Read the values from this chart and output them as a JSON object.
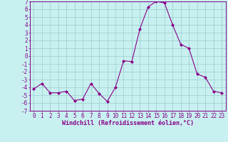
{
  "x": [
    0,
    1,
    2,
    3,
    4,
    5,
    6,
    7,
    8,
    9,
    10,
    11,
    12,
    13,
    14,
    15,
    16,
    17,
    18,
    19,
    20,
    21,
    22,
    23
  ],
  "y": [
    -4.2,
    -3.5,
    -4.7,
    -4.7,
    -4.5,
    -5.7,
    -5.5,
    -3.5,
    -4.8,
    -5.8,
    -4.0,
    -0.6,
    -0.7,
    3.5,
    6.3,
    7.0,
    6.8,
    4.0,
    1.5,
    1.0,
    -2.3,
    -2.7,
    -4.5,
    -4.7
  ],
  "line_color": "#880088",
  "marker": "D",
  "markersize": 2.0,
  "bg_color": "#c8f0f0",
  "grid_color": "#99cccc",
  "xlabel": "Windchill (Refroidissement éolien,°C)",
  "xlabel_fontsize": 6.0,
  "tick_fontsize": 5.5,
  "ylim": [
    -7,
    7
  ],
  "xlim": [
    -0.5,
    23.5
  ],
  "yticks": [
    -7,
    -6,
    -5,
    -4,
    -3,
    -2,
    -1,
    0,
    1,
    2,
    3,
    4,
    5,
    6,
    7
  ],
  "xticks": [
    0,
    1,
    2,
    3,
    4,
    5,
    6,
    7,
    8,
    9,
    10,
    11,
    12,
    13,
    14,
    15,
    16,
    17,
    18,
    19,
    20,
    21,
    22,
    23
  ]
}
